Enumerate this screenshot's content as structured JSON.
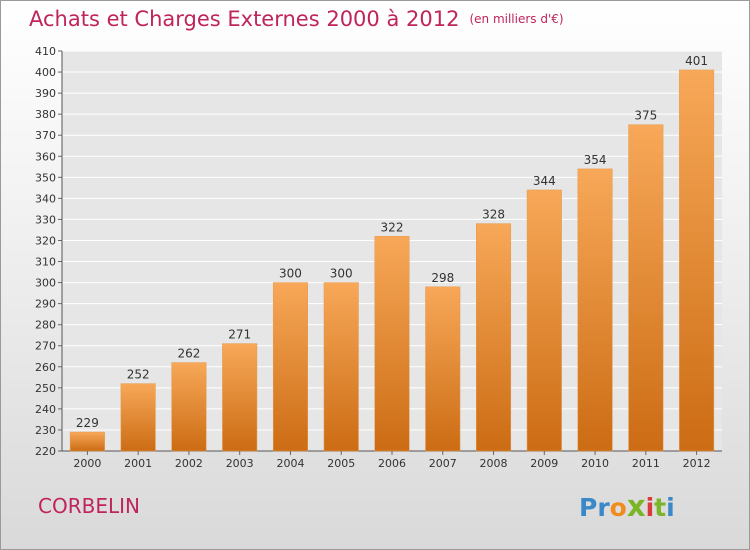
{
  "title": "Achats et Charges Externes 2000 à 2012",
  "subtitle": "(en milliers d'€)",
  "location": "CORBELIN",
  "logo": {
    "letters": [
      "P",
      "r",
      "o",
      "x",
      "i",
      "t",
      "i"
    ],
    "colors": [
      "#3a88c8",
      "#3a88c8",
      "#f08c1e",
      "#7ab527",
      "#d93a3a",
      "#7ab527",
      "#3a88c8"
    ]
  },
  "colors": {
    "bar_light": "#f7a858",
    "bar_dark": "#cc6c14",
    "title": "#c0245c"
  },
  "chart_data": {
    "type": "bar",
    "categories": [
      "2000",
      "2001",
      "2002",
      "2003",
      "2004",
      "2005",
      "2006",
      "2007",
      "2008",
      "2009",
      "2010",
      "2011",
      "2012"
    ],
    "values": [
      229,
      252,
      262,
      271,
      300,
      300,
      322,
      298,
      328,
      344,
      354,
      375,
      401
    ],
    "ylim": [
      220,
      410
    ],
    "yticks": [
      220,
      230,
      240,
      250,
      260,
      270,
      280,
      290,
      300,
      310,
      320,
      330,
      340,
      350,
      360,
      370,
      380,
      390,
      400,
      410
    ],
    "grid": true
  }
}
